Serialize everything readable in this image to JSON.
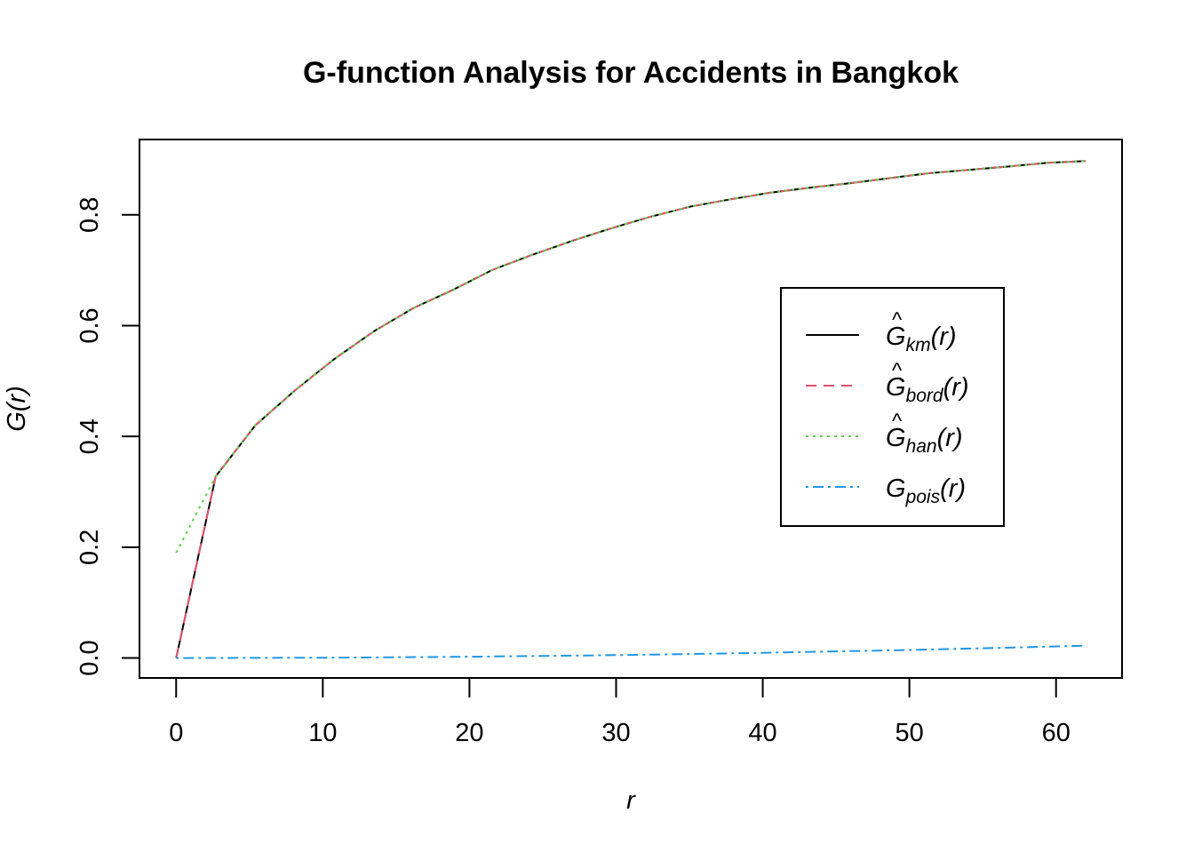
{
  "chart_data": {
    "type": "line",
    "title": "G-function Analysis for Accidents in Bangkok",
    "xlabel": "r",
    "ylabel": "G(r)",
    "xlim": [
      -2.5,
      64.5
    ],
    "ylim": [
      -0.036,
      0.936
    ],
    "x_ticks": [
      0,
      10,
      20,
      30,
      40,
      50,
      60
    ],
    "x_tick_labels": [
      "0",
      "10",
      "20",
      "30",
      "40",
      "50",
      "60"
    ],
    "y_ticks": [
      0.0,
      0.2,
      0.4,
      0.6,
      0.8
    ],
    "y_tick_labels": [
      "0.0",
      "0.2",
      "0.4",
      "0.6",
      "0.8"
    ],
    "legend_position": "right",
    "series": [
      {
        "name": "Ĝkm(r)",
        "legend_label": {
          "hat": "^",
          "base": "G",
          "sub": "km",
          "arg": "(r)"
        },
        "color": "#000000",
        "dash": "none",
        "x": [
          0,
          2.7,
          5.4,
          8.1,
          10.8,
          13.5,
          16.2,
          18.9,
          21.6,
          24.3,
          27.0,
          29.7,
          32.4,
          35.1,
          37.8,
          40.5,
          43.2,
          45.9,
          48.6,
          51.3,
          54.0,
          56.7,
          59.4,
          62.0
        ],
        "y": [
          0.0,
          0.328,
          0.42,
          0.483,
          0.54,
          0.59,
          0.632,
          0.665,
          0.701,
          0.728,
          0.753,
          0.776,
          0.797,
          0.815,
          0.828,
          0.84,
          0.849,
          0.857,
          0.866,
          0.875,
          0.881,
          0.887,
          0.894,
          0.897
        ]
      },
      {
        "name": "Ĝbord(r)",
        "legend_label": {
          "hat": "^",
          "base": "G",
          "sub": "bord",
          "arg": "(r)"
        },
        "color": "#DF536B",
        "dash": "12,8",
        "x": [
          0,
          2.7,
          5.4,
          8.1,
          10.8,
          13.5,
          16.2,
          18.9,
          21.6,
          24.3,
          27.0,
          29.7,
          32.4,
          35.1,
          37.8,
          40.5,
          43.2,
          45.9,
          48.6,
          51.3,
          54.0,
          56.7,
          59.4,
          62.0
        ],
        "y": [
          0.0,
          0.328,
          0.42,
          0.483,
          0.54,
          0.59,
          0.632,
          0.665,
          0.701,
          0.728,
          0.753,
          0.776,
          0.797,
          0.815,
          0.828,
          0.84,
          0.849,
          0.857,
          0.866,
          0.875,
          0.881,
          0.887,
          0.894,
          0.897
        ]
      },
      {
        "name": "Ĝhan(r)",
        "legend_label": {
          "hat": "^",
          "base": "G",
          "sub": "han",
          "arg": "(r)"
        },
        "color": "#61D04F",
        "dash": "3,5",
        "x": [
          0,
          2.7,
          5.4,
          8.1,
          10.8,
          13.5,
          16.2,
          18.9,
          21.6,
          24.3,
          27.0,
          29.7,
          32.4,
          35.1,
          37.8,
          40.5,
          43.2,
          45.9,
          48.6,
          51.3,
          54.0,
          56.7,
          59.4,
          62.0
        ],
        "y": [
          0.19,
          0.328,
          0.42,
          0.483,
          0.54,
          0.59,
          0.632,
          0.665,
          0.701,
          0.728,
          0.753,
          0.776,
          0.797,
          0.815,
          0.828,
          0.84,
          0.849,
          0.857,
          0.866,
          0.875,
          0.881,
          0.887,
          0.894,
          0.897
        ]
      },
      {
        "name": "Gpois(r)",
        "legend_label": {
          "hat": "",
          "base": "G",
          "sub": "pois",
          "arg": "(r)"
        },
        "color": "#2297E6",
        "dash": "3,5,12,5",
        "x": [
          0,
          5,
          10,
          15,
          20,
          25,
          30,
          35,
          40,
          45,
          50,
          55,
          60,
          62
        ],
        "y": [
          0.0,
          0.0002,
          0.0006,
          0.0013,
          0.0024,
          0.0037,
          0.0053,
          0.0072,
          0.0094,
          0.0119,
          0.0146,
          0.0176,
          0.021,
          0.0223
        ]
      }
    ]
  }
}
